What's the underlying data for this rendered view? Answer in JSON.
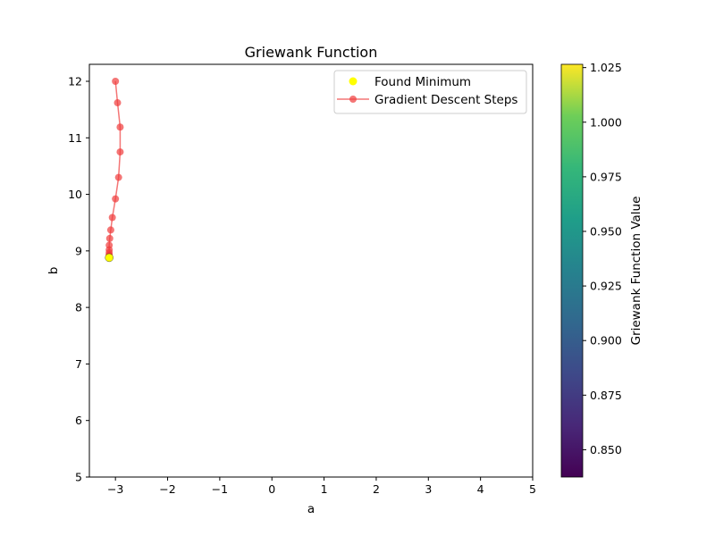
{
  "chart_data": {
    "type": "scatter",
    "title": "Griewank Function",
    "xlabel": "a",
    "ylabel": "b",
    "xlim": [
      -3.5,
      5
    ],
    "ylim": [
      5,
      12.3
    ],
    "xticks": [
      -3,
      -2,
      -1,
      0,
      1,
      2,
      3,
      4,
      5
    ],
    "xtick_labels": [
      "−3",
      "−2",
      "−1",
      "0",
      "1",
      "2",
      "3",
      "4",
      "5"
    ],
    "yticks": [
      5,
      6,
      7,
      8,
      9,
      10,
      11,
      12
    ],
    "ytick_labels": [
      "5",
      "6",
      "7",
      "8",
      "9",
      "10",
      "11",
      "12"
    ],
    "grid": false,
    "legend": {
      "position": "top-right"
    },
    "series": [
      {
        "name": "Gradient Descent Steps",
        "kind": "line-markers",
        "color": "#f03c3c",
        "x": [
          -3.0,
          -2.96,
          -2.91,
          -2.91,
          -2.94,
          -3.0,
          -3.06,
          -3.09,
          -3.11,
          -3.12,
          -3.12,
          -3.12,
          -3.12,
          -3.12,
          -3.12,
          -3.12
        ],
        "y": [
          12.0,
          11.62,
          11.19,
          10.75,
          10.3,
          9.92,
          9.59,
          9.37,
          9.22,
          9.1,
          9.02,
          8.97,
          8.93,
          8.91,
          8.9,
          8.89
        ]
      },
      {
        "name": "Found Minimum",
        "kind": "scatter",
        "color": "#ffff00",
        "x": [
          -3.12
        ],
        "y": [
          8.88
        ]
      }
    ],
    "colorbar": {
      "label": "Griewank Function Value",
      "min": 0.8375,
      "max": 1.0265,
      "ticks": [
        0.85,
        0.875,
        0.9,
        0.925,
        0.95,
        0.975,
        1.0,
        1.025
      ],
      "tick_labels": [
        "0.850",
        "0.875",
        "0.900",
        "0.925",
        "0.950",
        "0.975",
        "1.000",
        "1.025"
      ],
      "colormap": "viridis"
    }
  }
}
